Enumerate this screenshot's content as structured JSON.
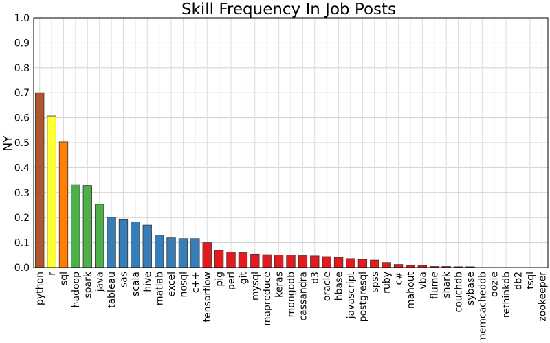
{
  "chart_data": {
    "type": "bar",
    "title": "Skill Frequency In Job Posts",
    "xlabel": "",
    "ylabel": "NY",
    "ylim": [
      0,
      1.0
    ],
    "yticks": [
      "0.0",
      "0.1",
      "0.2",
      "0.3",
      "0.4",
      "0.5",
      "0.6",
      "0.7",
      "0.8",
      "0.9",
      "1.0"
    ],
    "grid": true,
    "categories": [
      "python",
      "r",
      "sql",
      "hadoop",
      "spark",
      "java",
      "tableau",
      "sas",
      "scala",
      "hive",
      "matlab",
      "excel",
      "nosql",
      "c++",
      "tensorflow",
      "pig",
      "perl",
      "git",
      "mysql",
      "mapreduce",
      "keras",
      "mongodb",
      "cassandra",
      "d3",
      "oracle",
      "hbase",
      "javascript",
      "postgresql",
      "spss",
      "ruby",
      "c#",
      "mahout",
      "vba",
      "flume",
      "shark",
      "couchdb",
      "sybase",
      "memcacheddb",
      "oozie",
      "rethinkdb",
      "db2",
      "tsql",
      "zookeeper"
    ],
    "values": [
      0.7,
      0.607,
      0.503,
      0.332,
      0.328,
      0.253,
      0.201,
      0.194,
      0.183,
      0.17,
      0.13,
      0.119,
      0.116,
      0.116,
      0.1,
      0.069,
      0.062,
      0.059,
      0.054,
      0.052,
      0.051,
      0.051,
      0.048,
      0.047,
      0.044,
      0.041,
      0.036,
      0.033,
      0.03,
      0.02,
      0.012,
      0.008,
      0.008,
      0.004,
      0.004,
      0.003,
      0.003,
      0.0,
      0.0,
      0.0,
      0.0,
      0.0,
      0.0
    ],
    "colors": [
      "#b0562c",
      "#ffff33",
      "#ff7f00",
      "#4daf4a",
      "#4daf4a",
      "#4daf4a",
      "#377eb8",
      "#377eb8",
      "#377eb8",
      "#377eb8",
      "#377eb8",
      "#377eb8",
      "#377eb8",
      "#377eb8",
      "#e41a1c",
      "#e41a1c",
      "#e41a1c",
      "#e41a1c",
      "#e41a1c",
      "#e41a1c",
      "#e41a1c",
      "#e41a1c",
      "#e41a1c",
      "#e41a1c",
      "#e41a1c",
      "#e41a1c",
      "#e41a1c",
      "#e41a1c",
      "#e41a1c",
      "#e41a1c",
      "#e41a1c",
      "#e41a1c",
      "#e41a1c",
      "#e41a1c",
      "#e41a1c",
      "#e41a1c",
      "#e41a1c",
      "#e41a1c",
      "#e41a1c",
      "#e41a1c",
      "#e41a1c",
      "#e41a1c",
      "#e41a1c"
    ]
  }
}
